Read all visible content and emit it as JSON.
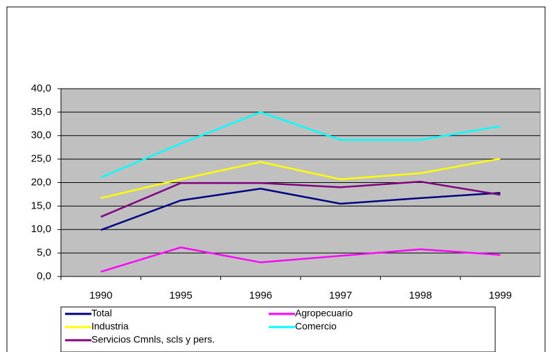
{
  "chart_data": {
    "type": "line",
    "categories": [
      "1990",
      "1995",
      "1996",
      "1997",
      "1998",
      "1999"
    ],
    "series": [
      {
        "name": "Total",
        "color": "#000080",
        "values": [
          9.9,
          16.2,
          18.7,
          15.5,
          16.7,
          17.8
        ]
      },
      {
        "name": "Agropecuario",
        "color": "#ff00ff",
        "values": [
          1.0,
          6.2,
          3.0,
          4.4,
          5.8,
          4.6
        ]
      },
      {
        "name": "Industria",
        "color": "#ffff00",
        "values": [
          16.7,
          20.7,
          24.4,
          20.7,
          22.0,
          25.1
        ]
      },
      {
        "name": "Comercio",
        "color": "#00ffff",
        "values": [
          21.1,
          28.3,
          35.0,
          29.1,
          29.1,
          32.0
        ]
      },
      {
        "name": "Servicios Cmnls, scls y pers.",
        "color": "#800080",
        "values": [
          12.7,
          19.9,
          19.9,
          19.0,
          20.2,
          17.4
        ]
      }
    ],
    "ylim": [
      0,
      40
    ],
    "yticks": [
      {
        "value": 0,
        "label": "0,0"
      },
      {
        "value": 5,
        "label": "5,0"
      },
      {
        "value": 10,
        "label": "10,0"
      },
      {
        "value": 15,
        "label": "15,0"
      },
      {
        "value": 20,
        "label": "20,0"
      },
      {
        "value": 25,
        "label": "25,0"
      },
      {
        "value": 30,
        "label": "30,0"
      },
      {
        "value": 35,
        "label": "35,0"
      },
      {
        "value": 40,
        "label": "40,0"
      }
    ],
    "grid": true,
    "plot_background": "#c0c0c0"
  }
}
